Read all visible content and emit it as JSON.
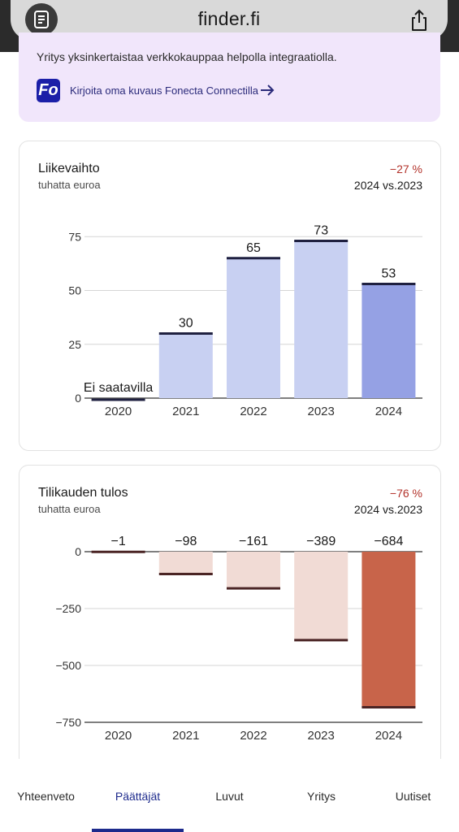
{
  "browser": {
    "url": "finder.fi"
  },
  "promo": {
    "text": "Yritys yksinkertaistaa verkkokauppaa helpolla integraatiolla.",
    "logo_text": "Fo",
    "link_text": "Kirjoita oma kuvaus Fonecta Connectilla"
  },
  "revenue": {
    "title": "Liikevaihto",
    "subtitle": "tuhatta euroa",
    "change": "−27 %",
    "period": "2024 vs.2023"
  },
  "profit": {
    "title": "Tilikauden tulos",
    "subtitle": "tuhatta euroa",
    "change": "−76 %",
    "period": "2024 vs.2023"
  },
  "nav": {
    "items": [
      "Yhteenveto",
      "Päättäjät",
      "Luvut",
      "Yritys",
      "Uutiset"
    ],
    "active": 1
  },
  "colors": {
    "bar_light_blue": "#c8d0f2",
    "bar_blue": "#95a1e4",
    "bar_light_red": "#f1dbd5",
    "bar_red": "#c8644a",
    "accent_navy": "#1d2a8c",
    "negative_red": "#b2322a"
  },
  "chart_data": [
    {
      "type": "bar",
      "title": "Liikevaihto",
      "subtitle": "tuhatta euroa",
      "categories": [
        "2020",
        "2021",
        "2022",
        "2023",
        "2024"
      ],
      "values": [
        null,
        30,
        65,
        73,
        53
      ],
      "labels": [
        "Ei saatavilla",
        "30",
        "65",
        "73",
        "53"
      ],
      "yticks": [
        "0",
        "25",
        "50",
        "75"
      ],
      "ylim": [
        0,
        80
      ],
      "grid": true
    },
    {
      "type": "bar",
      "title": "Tilikauden tulos",
      "subtitle": "tuhatta euroa",
      "categories": [
        "2020",
        "2021",
        "2022",
        "2023",
        "2024"
      ],
      "values": [
        -1,
        -98,
        -161,
        -389,
        -684
      ],
      "labels": [
        "−1",
        "−98",
        "−161",
        "−389",
        "−684"
      ],
      "yticks": [
        "0",
        "−250",
        "−500",
        "−750"
      ],
      "ylim": [
        -750,
        0
      ],
      "grid": true
    }
  ]
}
